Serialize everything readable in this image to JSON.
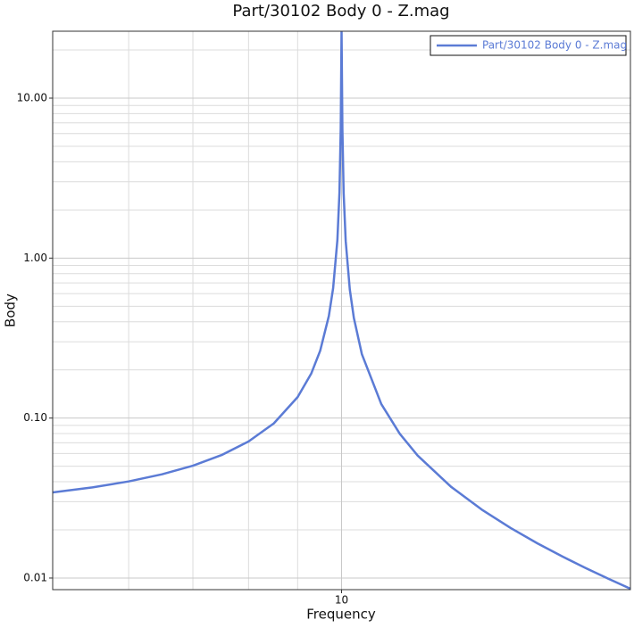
{
  "chart_data": {
    "type": "line",
    "title": "Part/30102 Body 0 - Z.mag",
    "xlabel": "Frequency",
    "ylabel": "Body",
    "xscale": "log",
    "yscale": "log",
    "grid": true,
    "legend": "upper right",
    "xlim": [
      5,
      20
    ],
    "ylim": [
      0.00846,
      26.2
    ],
    "xticks": [
      10
    ],
    "xminor": [
      6,
      7,
      8,
      9
    ],
    "yticks": [
      {
        "value": 0.01,
        "label": "0.01"
      },
      {
        "value": 0.1,
        "label": "0.10"
      },
      {
        "value": 1,
        "label": "1.00"
      },
      {
        "value": 10,
        "label": "10.00"
      }
    ],
    "yminor": [
      0.02,
      0.03,
      0.04,
      0.05,
      0.06,
      0.07,
      0.08,
      0.09,
      0.2,
      0.3,
      0.4,
      0.5,
      0.6,
      0.7,
      0.8,
      0.9,
      2,
      3,
      4,
      5,
      6,
      7,
      8,
      9,
      20
    ],
    "x": [
      5,
      5.5,
      6,
      6.5,
      7,
      7.5,
      8,
      8.5,
      9,
      9.3,
      9.5,
      9.7,
      9.8,
      9.9,
      9.95,
      9.98,
      9.99,
      10,
      10.01,
      10.02,
      10.05,
      10.1,
      10.2,
      10.3,
      10.5,
      11,
      11.5,
      12,
      13,
      14,
      15,
      16,
      17,
      18,
      19,
      20
    ],
    "series": [
      {
        "name": "Part/30102 Body 0 - Z.mag",
        "color": "#5b7bd5",
        "values": [
          0.03427,
          0.03685,
          0.04016,
          0.0445,
          0.05039,
          0.05874,
          0.07139,
          0.09261,
          0.1353,
          0.1902,
          0.2636,
          0.4349,
          0.649,
          1.2915,
          2.5764,
          6.431,
          12.86,
          26,
          12.84,
          6.419,
          2.5636,
          1.2786,
          0.6361,
          0.422,
          0.2507,
          0.1224,
          0.07969,
          0.05841,
          0.03725,
          0.02677,
          0.02056,
          0.01647,
          0.0136,
          0.01147,
          0.00985,
          0.00857
        ]
      }
    ]
  }
}
